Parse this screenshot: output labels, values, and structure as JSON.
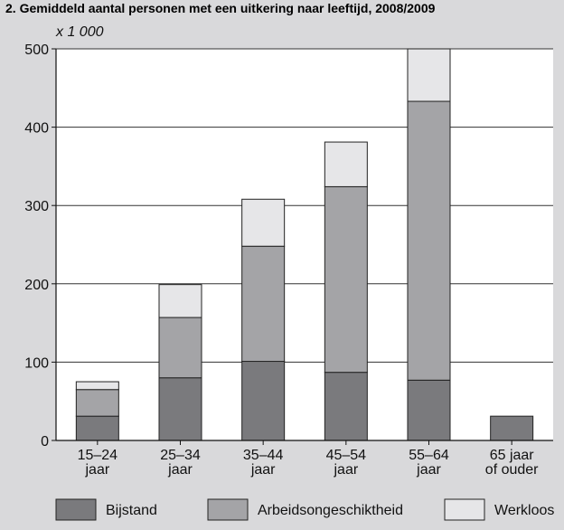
{
  "chart_data": {
    "type": "bar",
    "stacked": true,
    "title": "2. Gemiddeld aantal personen met een uitkering naar leeftijd, 2008/2009",
    "unit_label": "x 1 000",
    "categories": [
      [
        "15–24",
        "jaar"
      ],
      [
        "25–34",
        "jaar"
      ],
      [
        "35–44",
        "jaar"
      ],
      [
        "45–54",
        "jaar"
      ],
      [
        "55–64",
        "jaar"
      ],
      [
        "65 jaar",
        "of ouder"
      ]
    ],
    "series": [
      {
        "name": "Bijstand",
        "color": "#7a7a7d",
        "values": [
          31,
          80,
          101,
          87,
          77,
          31
        ]
      },
      {
        "name": "Arbeidsongeschiktheid",
        "color": "#a4a4a7",
        "values": [
          34,
          77,
          147,
          237,
          356,
          0
        ]
      },
      {
        "name": "Werkloos",
        "color": "#e6e6e8",
        "values": [
          10,
          42,
          60,
          57,
          67,
          0
        ]
      }
    ],
    "ylim": [
      0,
      500
    ],
    "yticks": [
      0,
      100,
      200,
      300,
      400,
      500
    ],
    "grid": true,
    "legend_position": "bottom"
  },
  "colors": {
    "panel_background": "#d9d9db",
    "plot_background": "#ffffff",
    "grid_line": "#333333"
  }
}
